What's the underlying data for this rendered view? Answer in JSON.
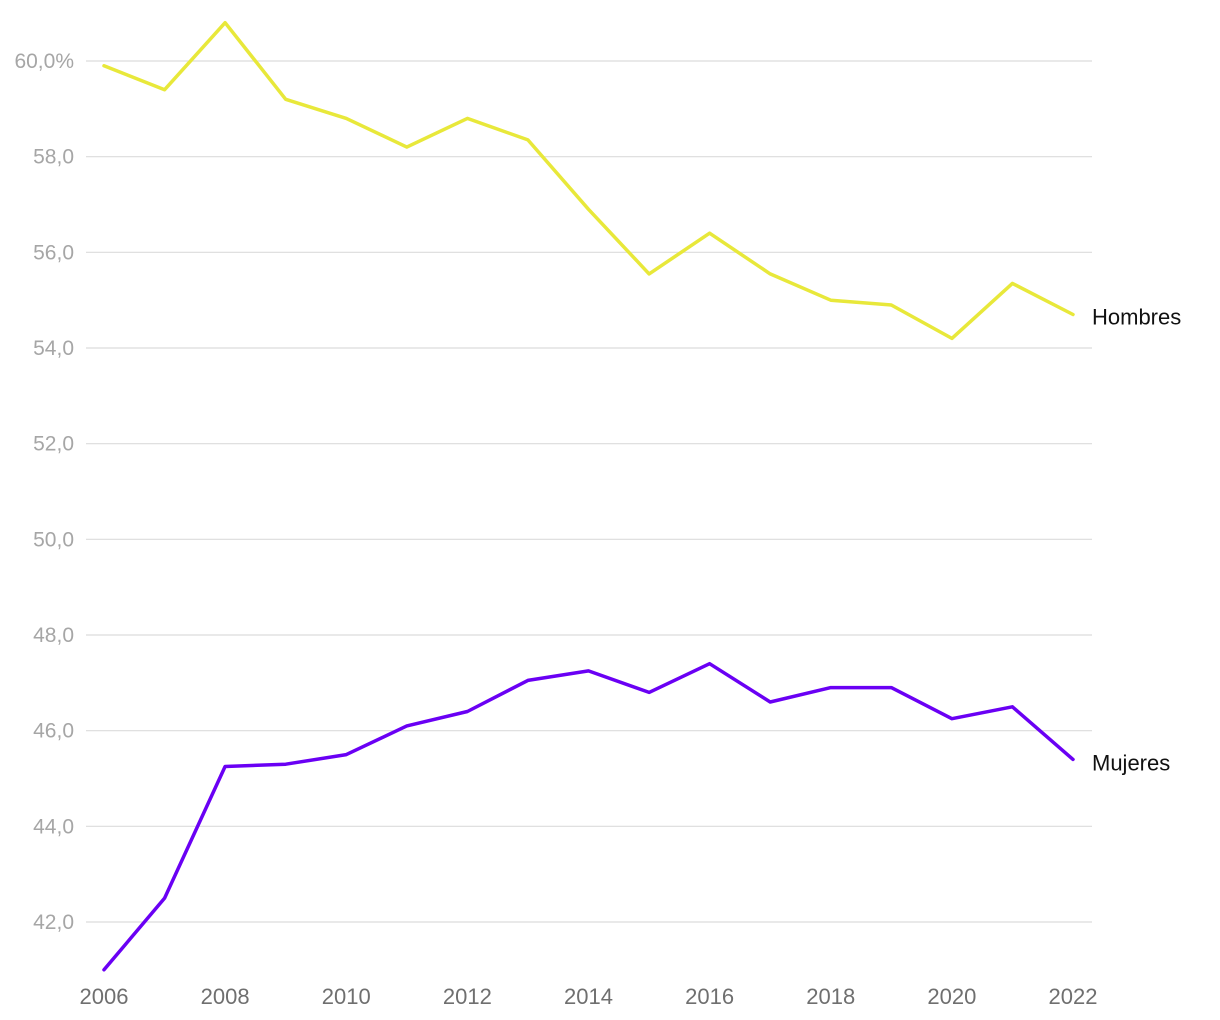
{
  "chart_data": {
    "type": "line",
    "title": "",
    "xlabel": "",
    "ylabel": "",
    "x": [
      2006,
      2007,
      2008,
      2009,
      2010,
      2011,
      2012,
      2013,
      2014,
      2015,
      2016,
      2017,
      2018,
      2019,
      2020,
      2021,
      2022
    ],
    "x_tick_labels": [
      "2006",
      "2008",
      "2010",
      "2012",
      "2014",
      "2016",
      "2018",
      "2020",
      "2022"
    ],
    "y_tick_values": [
      42,
      44,
      46,
      48,
      50,
      52,
      54,
      56,
      58,
      60
    ],
    "y_tick_labels": [
      "42,0",
      "44,0",
      "46,0",
      "48,0",
      "50,0",
      "52,0",
      "54,0",
      "56,0",
      "58,0",
      "60,0%"
    ],
    "ylim": [
      41,
      61
    ],
    "grid": true,
    "legend": "direct labels at line ends",
    "series": [
      {
        "name": "Hombres",
        "color": "#e8e83a",
        "values": [
          59.9,
          59.4,
          60.8,
          59.2,
          58.8,
          58.2,
          58.8,
          58.35,
          56.9,
          55.55,
          56.4,
          55.55,
          55.0,
          54.9,
          54.2,
          55.35,
          54.7
        ]
      },
      {
        "name": "Mujeres",
        "color": "#6a00f4",
        "values": [
          41.0,
          42.5,
          45.25,
          45.3,
          45.5,
          46.1,
          46.4,
          47.05,
          47.25,
          46.8,
          47.4,
          46.6,
          46.9,
          46.9,
          46.25,
          46.5,
          45.4
        ]
      }
    ]
  }
}
